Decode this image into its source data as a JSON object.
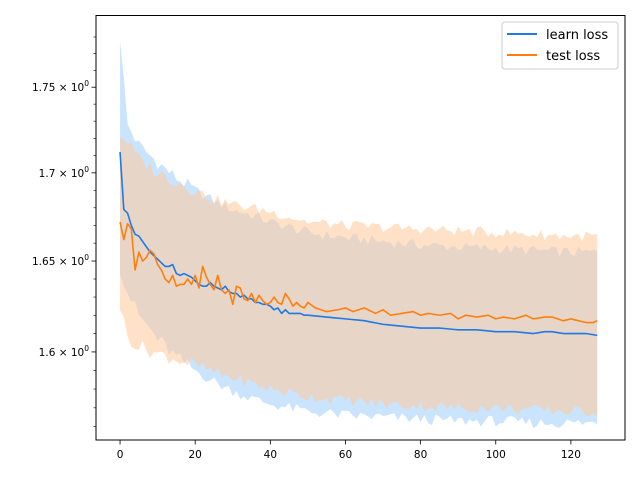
{
  "chart_data": {
    "type": "line",
    "title": "",
    "xlabel": "",
    "ylabel": "",
    "yscale": "log",
    "xlim": [
      -6.4,
      134.4
    ],
    "ylim": [
      1.553,
      1.793
    ],
    "x_ticks": [
      0,
      20,
      40,
      60,
      80,
      100,
      120
    ],
    "x_tick_labels": [
      "0",
      "20",
      "40",
      "60",
      "80",
      "100",
      "120"
    ],
    "y_ticks": [
      1.6,
      1.65,
      1.7,
      1.75
    ],
    "y_tick_labels": [
      {
        "base": "1.6 × 10",
        "exp": "0"
      },
      {
        "base": "1.65 × 10",
        "exp": "0"
      },
      {
        "base": "1.7 × 10",
        "exp": "0"
      },
      {
        "base": "1.75 × 10",
        "exp": "0"
      }
    ],
    "grid": false,
    "legend_position": "upper right",
    "series": [
      {
        "name": "learn loss",
        "color": "#1f7ae6",
        "band_color": "#a8d2fb",
        "mean_points": [
          [
            0,
            1.712
          ],
          [
            1,
            1.679
          ],
          [
            2,
            1.677
          ],
          [
            3,
            1.67
          ],
          [
            4,
            1.665
          ],
          [
            5,
            1.664
          ],
          [
            6,
            1.661
          ],
          [
            7,
            1.658
          ],
          [
            8,
            1.655
          ],
          [
            9,
            1.653
          ],
          [
            10,
            1.651
          ],
          [
            11,
            1.649
          ],
          [
            12,
            1.647
          ],
          [
            13,
            1.647
          ],
          [
            14,
            1.648
          ],
          [
            15,
            1.643
          ],
          [
            16,
            1.642
          ],
          [
            17,
            1.643
          ],
          [
            18,
            1.642
          ],
          [
            19,
            1.641
          ],
          [
            20,
            1.639
          ],
          [
            21,
            1.637
          ],
          [
            22,
            1.636
          ],
          [
            23,
            1.636
          ],
          [
            24,
            1.638
          ],
          [
            25,
            1.636
          ],
          [
            26,
            1.635
          ],
          [
            27,
            1.634
          ],
          [
            28,
            1.636
          ],
          [
            29,
            1.633
          ],
          [
            30,
            1.632
          ],
          [
            31,
            1.632
          ],
          [
            32,
            1.63
          ],
          [
            33,
            1.631
          ],
          [
            34,
            1.629
          ],
          [
            35,
            1.629
          ],
          [
            36,
            1.627
          ],
          [
            37,
            1.627
          ],
          [
            38,
            1.626
          ],
          [
            39,
            1.626
          ],
          [
            40,
            1.625
          ],
          [
            41,
            1.623
          ],
          [
            42,
            1.624
          ],
          [
            43,
            1.621
          ],
          [
            44,
            1.623
          ],
          [
            45,
            1.621
          ],
          [
            46,
            1.621
          ],
          [
            47,
            1.621
          ],
          [
            48,
            1.621
          ],
          [
            49,
            1.62
          ],
          [
            50,
            1.62
          ],
          [
            55,
            1.619
          ],
          [
            60,
            1.618
          ],
          [
            65,
            1.617
          ],
          [
            70,
            1.615
          ],
          [
            75,
            1.614
          ],
          [
            80,
            1.613
          ],
          [
            85,
            1.613
          ],
          [
            90,
            1.612
          ],
          [
            95,
            1.612
          ],
          [
            100,
            1.611
          ],
          [
            105,
            1.611
          ],
          [
            110,
            1.61
          ],
          [
            113,
            1.611
          ],
          [
            115,
            1.611
          ],
          [
            118,
            1.61
          ],
          [
            121,
            1.61
          ],
          [
            124,
            1.61
          ],
          [
            127,
            1.609
          ]
        ],
        "band_upper_points": [
          [
            0,
            1.78
          ],
          [
            2,
            1.728
          ],
          [
            5,
            1.716
          ],
          [
            10,
            1.706
          ],
          [
            15,
            1.697
          ],
          [
            20,
            1.69
          ],
          [
            25,
            1.684
          ],
          [
            30,
            1.679
          ],
          [
            35,
            1.676
          ],
          [
            40,
            1.672
          ],
          [
            45,
            1.669
          ],
          [
            50,
            1.666
          ],
          [
            60,
            1.663
          ],
          [
            70,
            1.661
          ],
          [
            80,
            1.659
          ],
          [
            90,
            1.658
          ],
          [
            100,
            1.657
          ],
          [
            110,
            1.656
          ],
          [
            120,
            1.655
          ],
          [
            127,
            1.655
          ]
        ],
        "band_lower_points": [
          [
            0,
            1.646
          ],
          [
            2,
            1.633
          ],
          [
            5,
            1.62
          ],
          [
            10,
            1.607
          ],
          [
            15,
            1.597
          ],
          [
            20,
            1.59
          ],
          [
            25,
            1.584
          ],
          [
            30,
            1.579
          ],
          [
            35,
            1.575
          ],
          [
            40,
            1.572
          ],
          [
            45,
            1.57
          ],
          [
            50,
            1.568
          ],
          [
            60,
            1.566
          ],
          [
            70,
            1.565
          ],
          [
            80,
            1.564
          ],
          [
            90,
            1.563
          ],
          [
            100,
            1.563
          ],
          [
            110,
            1.562
          ],
          [
            120,
            1.562
          ],
          [
            127,
            1.562
          ]
        ]
      },
      {
        "name": "test loss",
        "color": "#ff7f0e",
        "band_color": "#ffc99a",
        "mean_points": [
          [
            0,
            1.672
          ],
          [
            1,
            1.662
          ],
          [
            2,
            1.671
          ],
          [
            3,
            1.668
          ],
          [
            4,
            1.645
          ],
          [
            5,
            1.655
          ],
          [
            6,
            1.65
          ],
          [
            7,
            1.652
          ],
          [
            8,
            1.656
          ],
          [
            9,
            1.654
          ],
          [
            10,
            1.648
          ],
          [
            11,
            1.645
          ],
          [
            12,
            1.64
          ],
          [
            13,
            1.638
          ],
          [
            14,
            1.642
          ],
          [
            15,
            1.636
          ],
          [
            16,
            1.637
          ],
          [
            17,
            1.637
          ],
          [
            18,
            1.64
          ],
          [
            19,
            1.637
          ],
          [
            20,
            1.642
          ],
          [
            21,
            1.635
          ],
          [
            22,
            1.647
          ],
          [
            23,
            1.641
          ],
          [
            24,
            1.637
          ],
          [
            25,
            1.634
          ],
          [
            26,
            1.642
          ],
          [
            27,
            1.634
          ],
          [
            28,
            1.632
          ],
          [
            29,
            1.634
          ],
          [
            30,
            1.626
          ],
          [
            31,
            1.636
          ],
          [
            32,
            1.635
          ],
          [
            33,
            1.629
          ],
          [
            34,
            1.628
          ],
          [
            35,
            1.632
          ],
          [
            36,
            1.627
          ],
          [
            37,
            1.631
          ],
          [
            38,
            1.628
          ],
          [
            39,
            1.626
          ],
          [
            40,
            1.627
          ],
          [
            41,
            1.63
          ],
          [
            42,
            1.627
          ],
          [
            43,
            1.626
          ],
          [
            44,
            1.632
          ],
          [
            45,
            1.629
          ],
          [
            46,
            1.625
          ],
          [
            47,
            1.627
          ],
          [
            48,
            1.625
          ],
          [
            49,
            1.624
          ],
          [
            50,
            1.627
          ],
          [
            52,
            1.624
          ],
          [
            55,
            1.622
          ],
          [
            58,
            1.623
          ],
          [
            60,
            1.624
          ],
          [
            62,
            1.622
          ],
          [
            65,
            1.624
          ],
          [
            68,
            1.621
          ],
          [
            70,
            1.623
          ],
          [
            72,
            1.62
          ],
          [
            75,
            1.621
          ],
          [
            78,
            1.622
          ],
          [
            80,
            1.62
          ],
          [
            82,
            1.621
          ],
          [
            85,
            1.62
          ],
          [
            88,
            1.621
          ],
          [
            90,
            1.618
          ],
          [
            92,
            1.62
          ],
          [
            95,
            1.619
          ],
          [
            98,
            1.62
          ],
          [
            100,
            1.618
          ],
          [
            102,
            1.619
          ],
          [
            105,
            1.618
          ],
          [
            108,
            1.62
          ],
          [
            110,
            1.618
          ],
          [
            113,
            1.619
          ],
          [
            115,
            1.619
          ],
          [
            118,
            1.617
          ],
          [
            120,
            1.618
          ],
          [
            122,
            1.617
          ],
          [
            124,
            1.616
          ],
          [
            126,
            1.616
          ],
          [
            127,
            1.617
          ]
        ],
        "band_upper_points": [
          [
            0,
            1.722
          ],
          [
            2,
            1.718
          ],
          [
            5,
            1.708
          ],
          [
            10,
            1.7
          ],
          [
            15,
            1.695
          ],
          [
            20,
            1.69
          ],
          [
            25,
            1.685
          ],
          [
            30,
            1.682
          ],
          [
            35,
            1.68
          ],
          [
            40,
            1.678
          ],
          [
            45,
            1.675
          ],
          [
            50,
            1.672
          ],
          [
            60,
            1.67
          ],
          [
            70,
            1.669
          ],
          [
            80,
            1.668
          ],
          [
            90,
            1.667
          ],
          [
            100,
            1.666
          ],
          [
            110,
            1.665
          ],
          [
            120,
            1.664
          ],
          [
            127,
            1.664
          ]
        ],
        "band_lower_points": [
          [
            0,
            1.625
          ],
          [
            2,
            1.608
          ],
          [
            5,
            1.603
          ],
          [
            10,
            1.599
          ],
          [
            15,
            1.596
          ],
          [
            20,
            1.593
          ],
          [
            25,
            1.589
          ],
          [
            30,
            1.586
          ],
          [
            35,
            1.583
          ],
          [
            40,
            1.58
          ],
          [
            45,
            1.578
          ],
          [
            50,
            1.576
          ],
          [
            60,
            1.574
          ],
          [
            70,
            1.572
          ],
          [
            80,
            1.571
          ],
          [
            90,
            1.57
          ],
          [
            100,
            1.57
          ],
          [
            110,
            1.569
          ],
          [
            120,
            1.568
          ],
          [
            127,
            1.568
          ]
        ]
      }
    ]
  }
}
